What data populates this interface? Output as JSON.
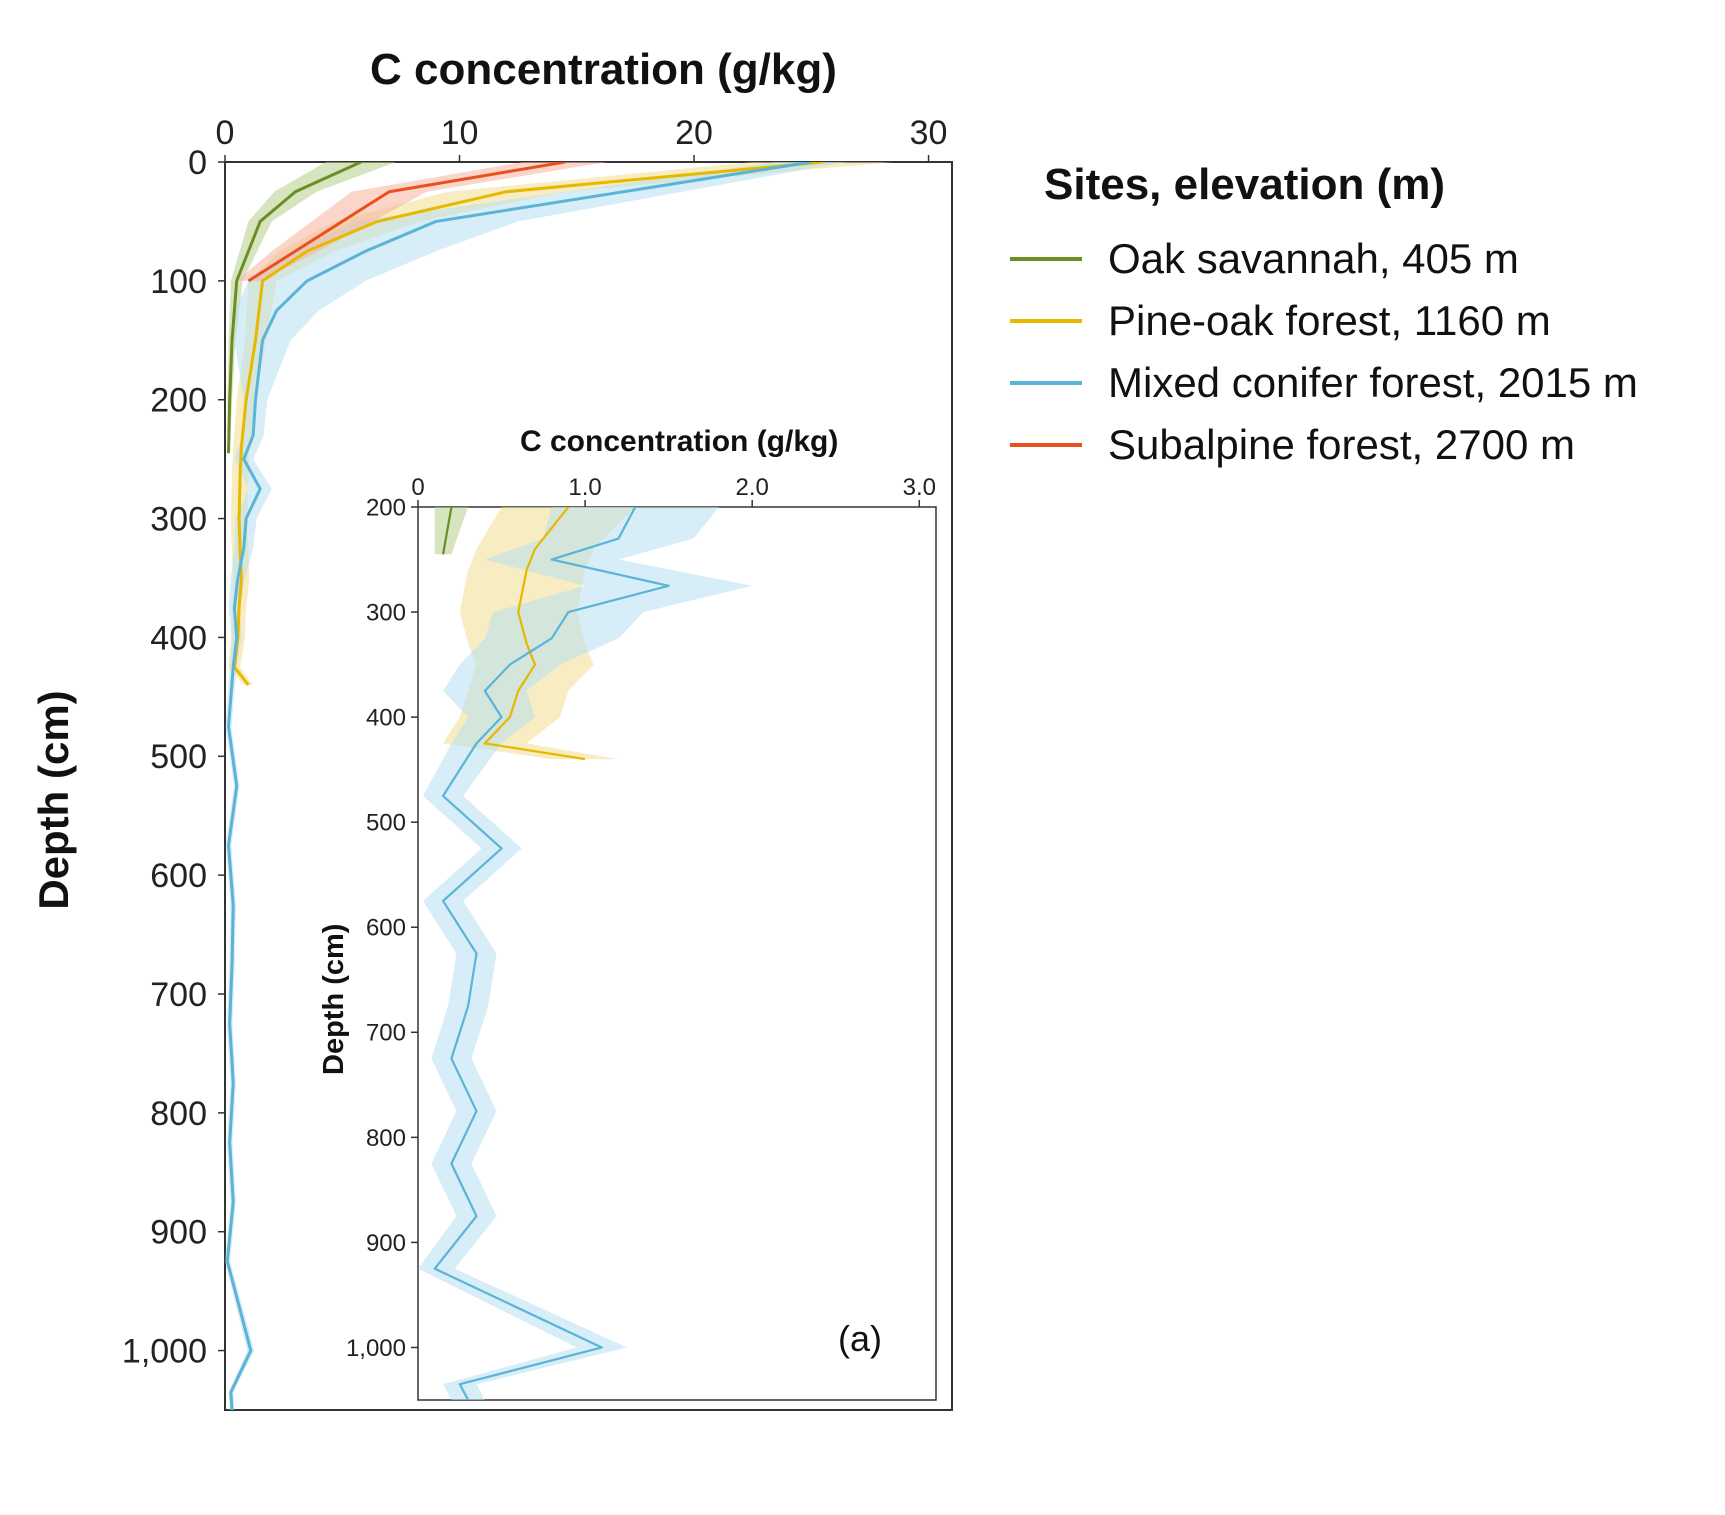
{
  "chart_data": {
    "type": "line",
    "title": "C concentration (g/kg)",
    "xlabel": "C concentration (g/kg)",
    "ylabel": "Depth (cm)",
    "xlim": [
      0,
      31
    ],
    "ylim": [
      1050,
      0
    ],
    "x_ticks": [
      "0",
      "10",
      "20",
      "30"
    ],
    "y_ticks": [
      "0",
      "100",
      "200",
      "300",
      "400",
      "500",
      "600",
      "700",
      "800",
      "900",
      "1,000"
    ],
    "legend_title": "Sites, elevation (m)",
    "series": [
      {
        "name": "Oak savannah, 405 m",
        "color": "#6b8e23",
        "band_color": "#b5cf8a",
        "x": [
          5.8,
          3.0,
          1.5,
          0.5,
          0.3,
          0.2,
          0.15
        ],
        "y": [
          0,
          25,
          50,
          100,
          150,
          200,
          245
        ],
        "spread": [
          1.5,
          0.9,
          0.5,
          0.25,
          0.15,
          0.1,
          0.05
        ]
      },
      {
        "name": "Pine-oak forest, 1160 m",
        "color": "#e6b800",
        "band_color": "#f2df8f",
        "x": [
          25.5,
          12.0,
          6.5,
          3.5,
          1.6,
          1.3,
          0.9,
          0.7,
          0.65,
          0.6,
          0.65,
          0.7,
          0.6,
          0.55,
          0.4,
          1.0
        ],
        "y": [
          0,
          25,
          50,
          75,
          100,
          150,
          200,
          240,
          260,
          300,
          330,
          350,
          375,
          400,
          425,
          440
        ],
        "spread": [
          3.0,
          2.5,
          1.8,
          1.2,
          0.6,
          0.45,
          0.4,
          0.35,
          0.35,
          0.35,
          0.35,
          0.35,
          0.3,
          0.3,
          0.25,
          0.2
        ]
      },
      {
        "name": "Mixed conifer forest, 2015 m",
        "color": "#5bb4d6",
        "band_color": "#b7dff0",
        "x": [
          25.0,
          9.0,
          6.0,
          3.5,
          2.2,
          1.6,
          1.3,
          1.2,
          0.8,
          1.5,
          0.9,
          0.8,
          0.55,
          0.4,
          0.5,
          0.35,
          0.15,
          0.5,
          0.15,
          0.35,
          0.3,
          0.2,
          0.35,
          0.2,
          0.35,
          0.1,
          1.1,
          0.25,
          0.3
        ],
        "y": [
          0,
          50,
          75,
          100,
          125,
          150,
          200,
          230,
          250,
          275,
          300,
          325,
          350,
          375,
          400,
          425,
          475,
          525,
          575,
          625,
          675,
          725,
          775,
          825,
          875,
          925,
          1000,
          1035,
          1050
        ],
        "spread": [
          1.5,
          3.5,
          3.0,
          2.5,
          1.8,
          1.2,
          0.5,
          0.45,
          0.4,
          0.5,
          0.45,
          0.4,
          0.3,
          0.25,
          0.2,
          0.15,
          0.12,
          0.12,
          0.12,
          0.12,
          0.12,
          0.12,
          0.12,
          0.12,
          0.12,
          0.12,
          0.15,
          0.1,
          0.1
        ]
      },
      {
        "name": "Subalpine forest, 2700 m",
        "color": "#e8501e",
        "band_color": "#f7b39c",
        "x": [
          14.5,
          7.0,
          5.0,
          3.0,
          1.0
        ],
        "y": [
          0,
          25,
          50,
          75,
          100
        ],
        "spread": [
          1.8,
          1.6,
          1.3,
          1.0,
          0.5
        ]
      }
    ],
    "inset": {
      "title": "C concentration (g/kg)",
      "xlabel": "C concentration (g/kg)",
      "ylabel": "Depth (cm)",
      "xlim": [
        0,
        3.1
      ],
      "ylim": [
        1050,
        200
      ],
      "x_ticks": [
        "0",
        "1.0",
        "2.0",
        "3.0"
      ],
      "y_ticks": [
        "200",
        "300",
        "400",
        "500",
        "600",
        "700",
        "800",
        "900",
        "1,000"
      ],
      "panel_label": "(a)"
    }
  }
}
